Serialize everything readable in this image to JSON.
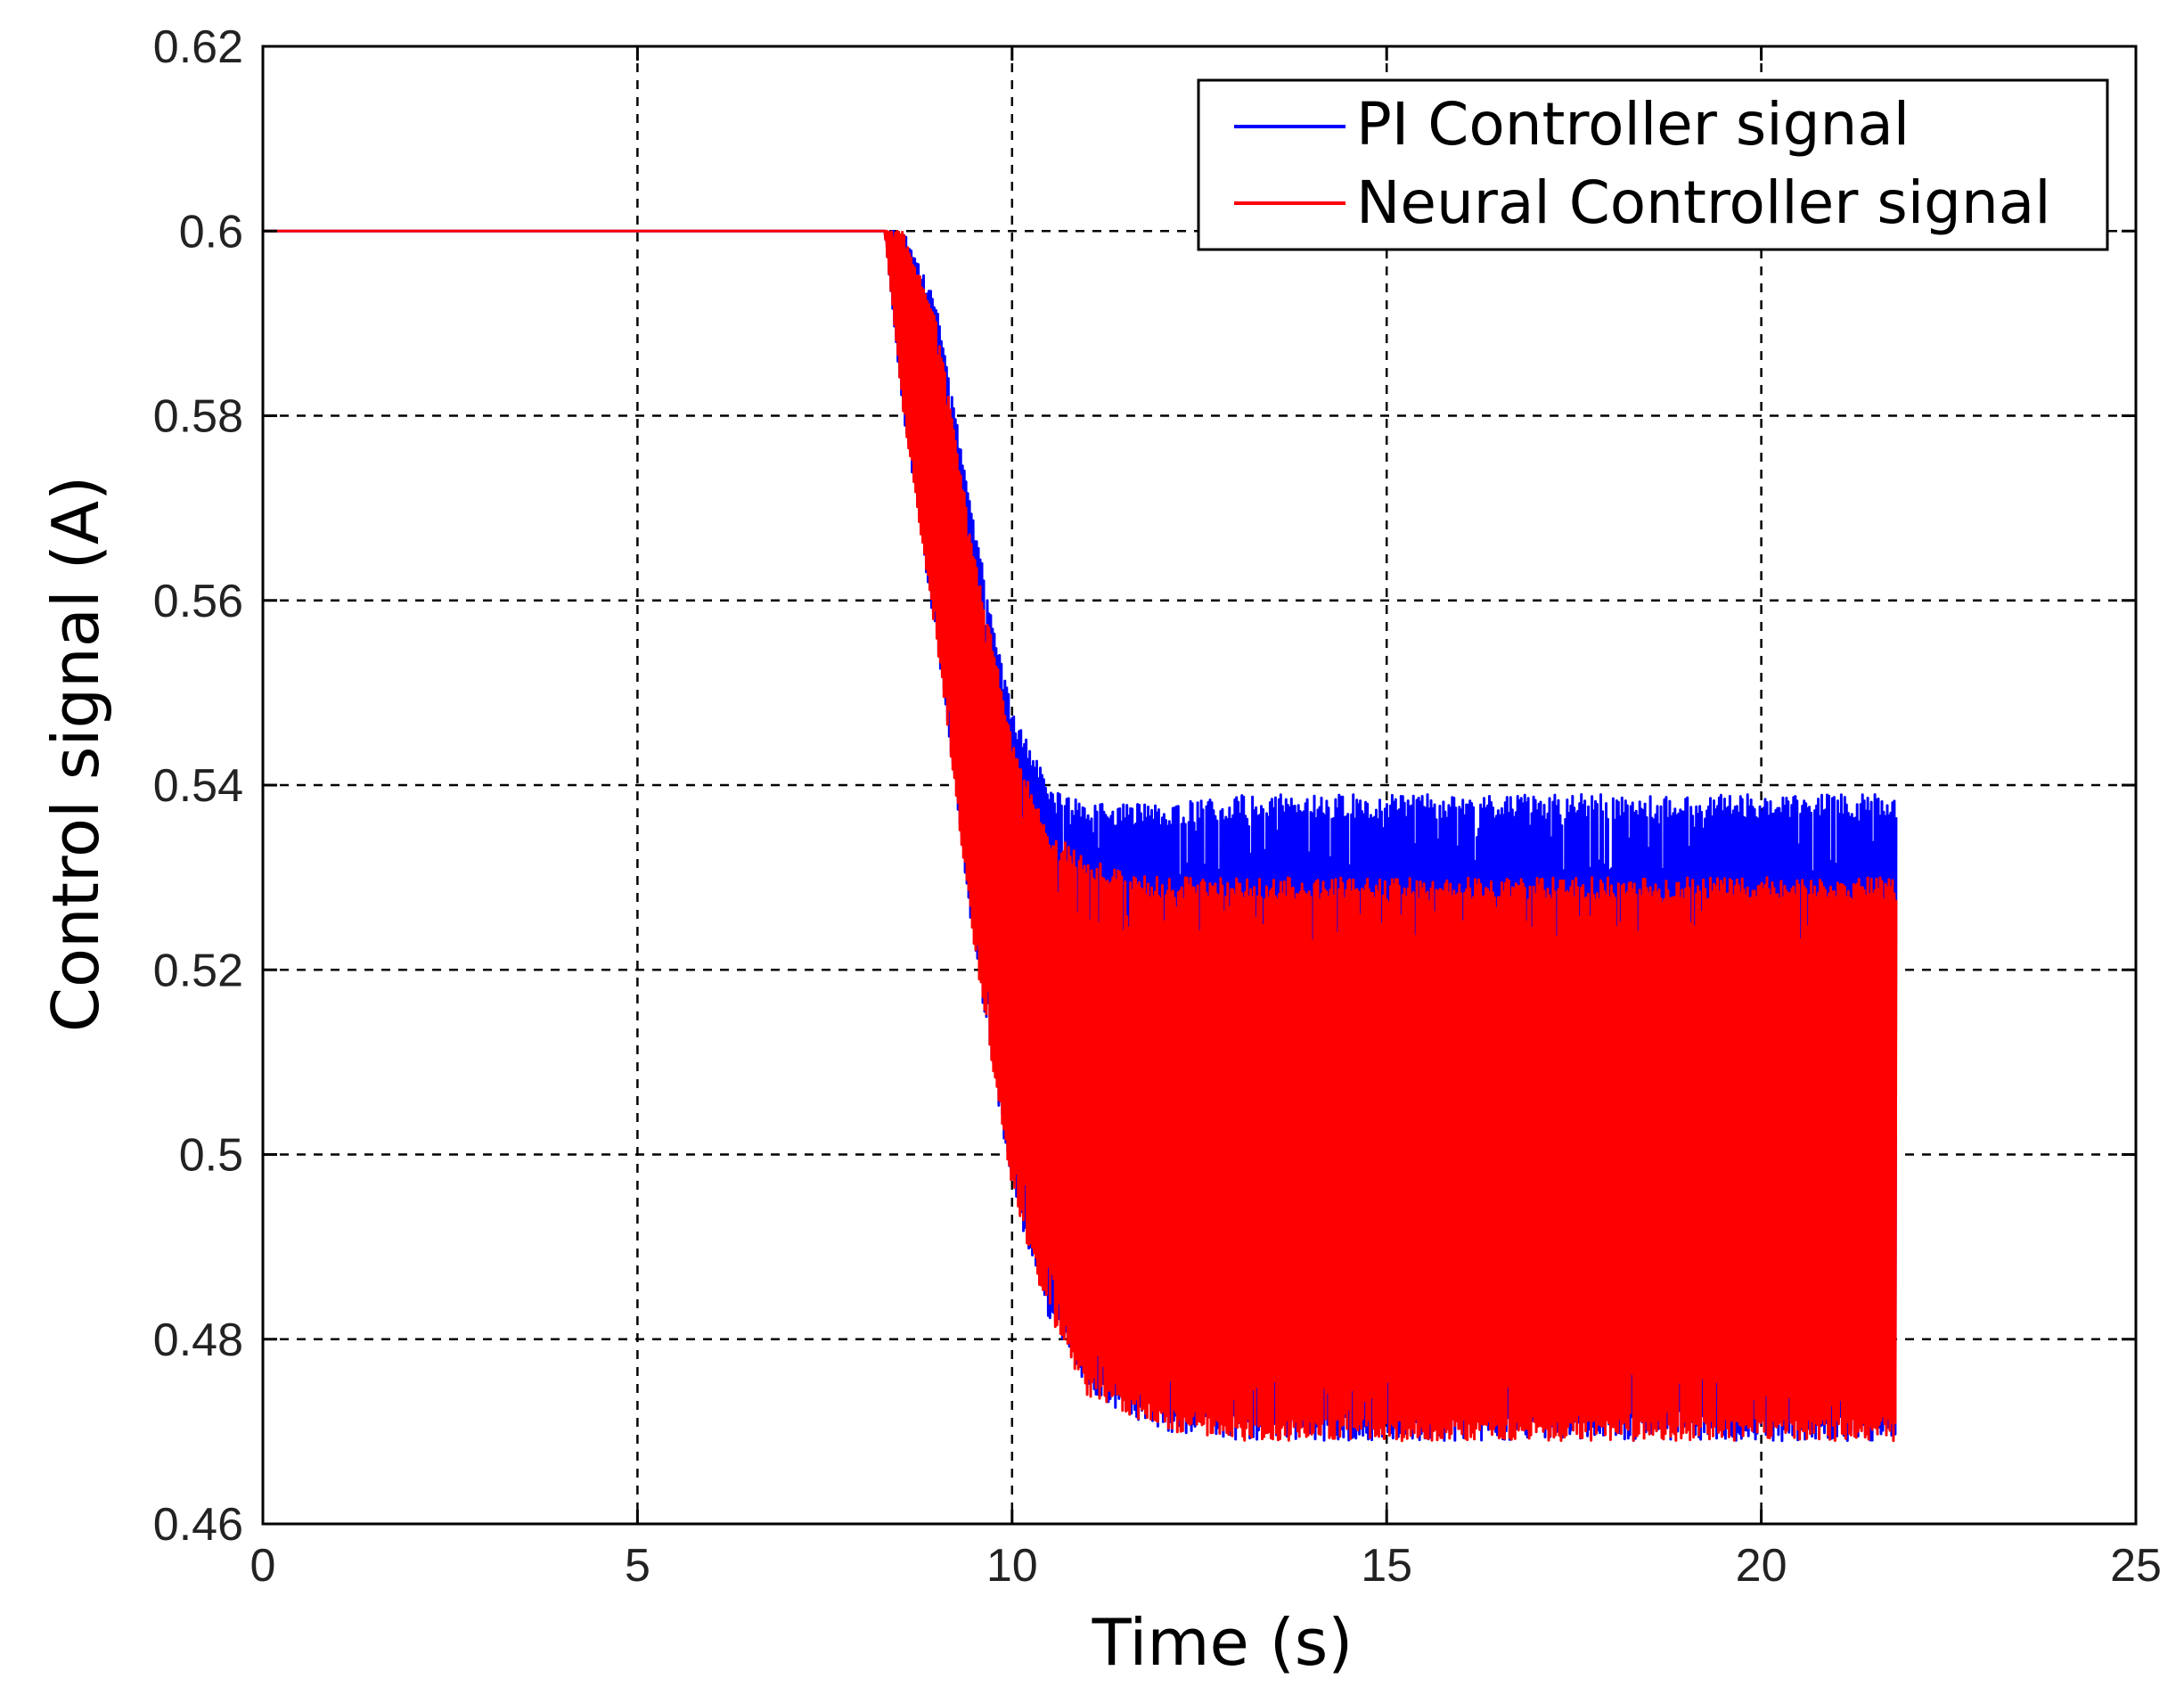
{
  "chart_data": {
    "type": "line",
    "xlabel": "Time (s)",
    "ylabel": "Control signal (A)",
    "xlim": [
      0,
      25
    ],
    "ylim": [
      0.46,
      0.62
    ],
    "x_ticks": [
      "0",
      "5",
      "10",
      "15",
      "20",
      "25"
    ],
    "y_ticks": [
      "0.46",
      "0.48",
      "0.5",
      "0.52",
      "0.54",
      "0.56",
      "0.58",
      "0.6",
      "0.62"
    ],
    "grid": true,
    "legend_position": "top-right",
    "series": [
      {
        "name": "PI Controller signal",
        "color": "#0000ff",
        "envelope": {
          "x": [
            0,
            8.3,
            8.55,
            9.0,
            9.5,
            10.0,
            10.5,
            11.0,
            12.0,
            13.0,
            15.0,
            18.0,
            21.8
          ],
          "upper": [
            0.6,
            0.6,
            0.6,
            0.592,
            0.568,
            0.548,
            0.54,
            0.538,
            0.538,
            0.539,
            0.539,
            0.539,
            0.539
          ],
          "lower": [
            0.6,
            0.6,
            0.58,
            0.555,
            0.522,
            0.496,
            0.482,
            0.474,
            0.47,
            0.469,
            0.469,
            0.469,
            0.469
          ]
        }
      },
      {
        "name": "Neural Controller signal",
        "color": "#ff0000",
        "envelope": {
          "x": [
            0,
            8.3,
            8.55,
            9.0,
            9.5,
            10.0,
            10.5,
            11.0,
            12.0,
            13.0,
            15.0,
            18.0,
            21.8
          ],
          "upper": [
            0.6,
            0.6,
            0.6,
            0.59,
            0.565,
            0.545,
            0.535,
            0.532,
            0.53,
            0.53,
            0.53,
            0.53,
            0.53
          ],
          "lower": [
            0.6,
            0.6,
            0.58,
            0.555,
            0.522,
            0.496,
            0.482,
            0.474,
            0.47,
            0.469,
            0.469,
            0.469,
            0.469
          ]
        }
      }
    ]
  }
}
